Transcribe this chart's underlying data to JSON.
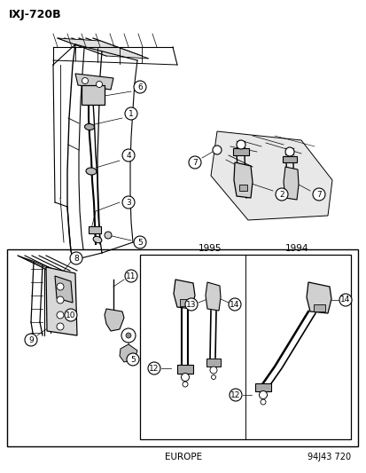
{
  "title": "IXJ-720B",
  "footer_left": "EUROPE",
  "footer_right": "94J43 720",
  "year1": "1995",
  "year2": "1994",
  "bg": "#ffffff",
  "fg": "#000000",
  "gray1": "#888888",
  "gray2": "#aaaaaa",
  "gray3": "#cccccc",
  "fig_width": 4.14,
  "fig_height": 5.33,
  "dpi": 100
}
